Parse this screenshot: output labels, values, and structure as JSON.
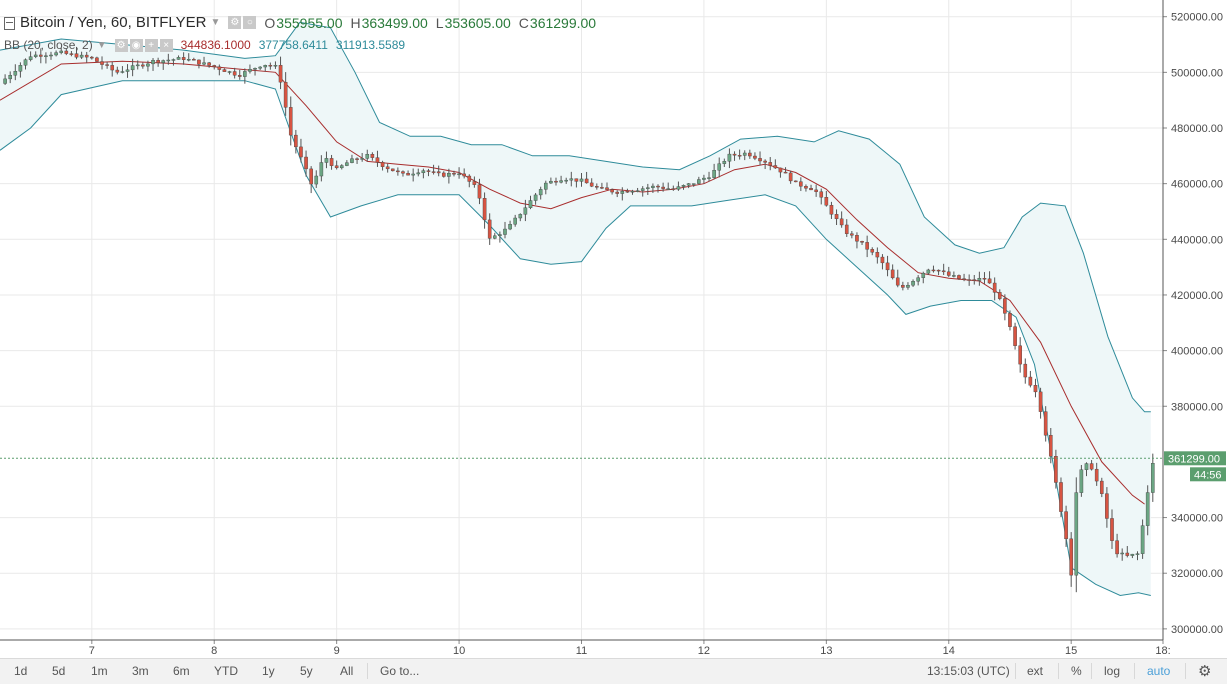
{
  "header": {
    "symbol": "Bitcoin / Yen, 60, BITFLYER",
    "ohlc": [
      {
        "label": "O",
        "value": "355955.00"
      },
      {
        "label": "H",
        "value": "363499.00"
      },
      {
        "label": "L",
        "value": "353605.00"
      },
      {
        "label": "C",
        "value": "361299.00"
      }
    ],
    "indicator": {
      "name": "BB (20, close, 2)",
      "basis": "344836.1000",
      "upper": "377758.6411",
      "lower": "311913.5589"
    }
  },
  "price_axis": {
    "last_price_label": "361299.00",
    "countdown": "44:56"
  },
  "toolbar": {
    "ranges": [
      "1d",
      "5d",
      "1m",
      "3m",
      "6m",
      "YTD",
      "1y",
      "5y",
      "All"
    ],
    "goto": "Go to...",
    "time": "13:15:03 (UTC)",
    "ext": "ext",
    "percent": "%",
    "log": "log",
    "auto": "auto"
  },
  "colors": {
    "up": "#6ba583",
    "down": "#d75442",
    "basis": "#a82d2d",
    "band": "#2e8b9a",
    "band_fill": "#eef7f8",
    "grid": "#e9e9e9",
    "last_price": "#5b9e6e"
  },
  "chart_data": {
    "type": "candlestick",
    "title": "Bitcoin / Yen, 60, BITFLYER",
    "x_tick_labels": [
      "7",
      "8",
      "9",
      "10",
      "11",
      "12",
      "13",
      "14",
      "15",
      "18:"
    ],
    "y_tick_labels": [
      "520000.00",
      "500000.00",
      "480000.00",
      "460000.00",
      "440000.00",
      "420000.00",
      "400000.00",
      "380000.00",
      "340000.00",
      "320000.00",
      "300000.00"
    ],
    "ylim": [
      296000,
      526000
    ],
    "xlim": [
      6.25,
      15.75
    ],
    "grid": true,
    "last_price": 361299,
    "day_x": [
      7,
      8,
      9,
      10,
      11,
      12,
      13,
      14,
      15,
      15.75
    ],
    "close_path": [
      [
        6.25,
        496000
      ],
      [
        6.5,
        506000
      ],
      [
        6.75,
        507000
      ],
      [
        7.0,
        505000
      ],
      [
        7.2,
        500000
      ],
      [
        7.5,
        504000
      ],
      [
        7.75,
        505000
      ],
      [
        8.0,
        502000
      ],
      [
        8.2,
        499000
      ],
      [
        8.4,
        503000
      ],
      [
        8.5,
        502000
      ],
      [
        8.55,
        496000
      ],
      [
        8.62,
        478000
      ],
      [
        8.72,
        468000
      ],
      [
        8.8,
        459000
      ],
      [
        8.9,
        470000
      ],
      [
        9.0,
        465000
      ],
      [
        9.1,
        468000
      ],
      [
        9.25,
        470000
      ],
      [
        9.4,
        466000
      ],
      [
        9.55,
        463000
      ],
      [
        9.7,
        465000
      ],
      [
        9.85,
        463000
      ],
      [
        10.0,
        464000
      ],
      [
        10.15,
        458000
      ],
      [
        10.25,
        440000
      ],
      [
        10.4,
        444000
      ],
      [
        10.55,
        452000
      ],
      [
        10.7,
        460000
      ],
      [
        10.85,
        462000
      ],
      [
        11.0,
        461000
      ],
      [
        11.15,
        458000
      ],
      [
        11.3,
        457000
      ],
      [
        11.45,
        458000
      ],
      [
        11.6,
        459000
      ],
      [
        11.75,
        458000
      ],
      [
        11.9,
        460000
      ],
      [
        12.05,
        463000
      ],
      [
        12.2,
        470000
      ],
      [
        12.35,
        471000
      ],
      [
        12.5,
        468000
      ],
      [
        12.65,
        464000
      ],
      [
        12.75,
        460000
      ],
      [
        12.9,
        458000
      ],
      [
        13.0,
        452000
      ],
      [
        13.15,
        443000
      ],
      [
        13.3,
        438000
      ],
      [
        13.45,
        432000
      ],
      [
        13.6,
        422000
      ],
      [
        13.7,
        425000
      ],
      [
        13.85,
        430000
      ],
      [
        14.0,
        427000
      ],
      [
        14.15,
        425000
      ],
      [
        14.3,
        426000
      ],
      [
        14.4,
        420000
      ],
      [
        14.5,
        408000
      ],
      [
        14.6,
        392000
      ],
      [
        14.72,
        385000
      ],
      [
        14.85,
        358000
      ],
      [
        14.95,
        335000
      ],
      [
        15.0,
        320000
      ],
      [
        15.05,
        355000
      ],
      [
        15.15,
        360000
      ],
      [
        15.25,
        348000
      ],
      [
        15.35,
        328000
      ],
      [
        15.45,
        326000
      ],
      [
        15.55,
        327000
      ],
      [
        15.65,
        357000
      ],
      [
        15.68,
        361000
      ]
    ],
    "series": [
      {
        "name": "BB basis",
        "points": [
          [
            6.25,
            490000
          ],
          [
            6.75,
            503000
          ],
          [
            7.25,
            504000
          ],
          [
            7.75,
            503000
          ],
          [
            8.25,
            501000
          ],
          [
            8.5,
            500000
          ],
          [
            8.75,
            488000
          ],
          [
            9.0,
            475000
          ],
          [
            9.25,
            468000
          ],
          [
            9.5,
            467000
          ],
          [
            9.75,
            466000
          ],
          [
            10.0,
            464000
          ],
          [
            10.25,
            458000
          ],
          [
            10.5,
            453000
          ],
          [
            10.75,
            451000
          ],
          [
            11.0,
            455000
          ],
          [
            11.25,
            458000
          ],
          [
            11.5,
            457000
          ],
          [
            11.75,
            458000
          ],
          [
            12.0,
            460000
          ],
          [
            12.25,
            465000
          ],
          [
            12.5,
            467000
          ],
          [
            12.75,
            464000
          ],
          [
            13.0,
            458000
          ],
          [
            13.25,
            447000
          ],
          [
            13.5,
            437000
          ],
          [
            13.75,
            428000
          ],
          [
            14.0,
            426000
          ],
          [
            14.25,
            425000
          ],
          [
            14.5,
            418000
          ],
          [
            14.75,
            403000
          ],
          [
            15.0,
            380000
          ],
          [
            15.25,
            360000
          ],
          [
            15.5,
            348000
          ],
          [
            15.6,
            344836
          ]
        ]
      },
      {
        "name": "BB upper",
        "points": [
          [
            6.25,
            508000
          ],
          [
            6.75,
            512000
          ],
          [
            7.25,
            510000
          ],
          [
            7.75,
            508000
          ],
          [
            8.25,
            505000
          ],
          [
            8.5,
            506000
          ],
          [
            8.7,
            518000
          ],
          [
            8.95,
            516000
          ],
          [
            9.15,
            500000
          ],
          [
            9.35,
            482000
          ],
          [
            9.6,
            477000
          ],
          [
            9.85,
            477000
          ],
          [
            10.1,
            474000
          ],
          [
            10.35,
            474000
          ],
          [
            10.6,
            470000
          ],
          [
            10.9,
            470000
          ],
          [
            11.2,
            468000
          ],
          [
            11.5,
            466000
          ],
          [
            11.8,
            465000
          ],
          [
            12.05,
            470000
          ],
          [
            12.3,
            476000
          ],
          [
            12.6,
            477000
          ],
          [
            12.9,
            475000
          ],
          [
            13.1,
            479000
          ],
          [
            13.35,
            476000
          ],
          [
            13.6,
            467000
          ],
          [
            13.8,
            448000
          ],
          [
            14.05,
            438000
          ],
          [
            14.25,
            435000
          ],
          [
            14.45,
            437000
          ],
          [
            14.6,
            448000
          ],
          [
            14.75,
            453000
          ],
          [
            14.95,
            452000
          ],
          [
            15.1,
            435000
          ],
          [
            15.3,
            405000
          ],
          [
            15.5,
            383000
          ],
          [
            15.6,
            378000
          ],
          [
            15.65,
            378000
          ]
        ]
      },
      {
        "name": "BB lower",
        "points": [
          [
            6.25,
            472000
          ],
          [
            6.5,
            480000
          ],
          [
            6.75,
            492000
          ],
          [
            7.25,
            497000
          ],
          [
            7.75,
            497000
          ],
          [
            8.25,
            497000
          ],
          [
            8.5,
            494000
          ],
          [
            8.75,
            463000
          ],
          [
            8.95,
            448000
          ],
          [
            9.2,
            452000
          ],
          [
            9.5,
            456000
          ],
          [
            9.75,
            456000
          ],
          [
            10.0,
            456000
          ],
          [
            10.25,
            445000
          ],
          [
            10.5,
            433000
          ],
          [
            10.75,
            431000
          ],
          [
            11.0,
            432000
          ],
          [
            11.2,
            444000
          ],
          [
            11.4,
            452000
          ],
          [
            11.6,
            452000
          ],
          [
            11.9,
            452000
          ],
          [
            12.2,
            454000
          ],
          [
            12.5,
            456000
          ],
          [
            12.75,
            452000
          ],
          [
            13.0,
            440000
          ],
          [
            13.25,
            430000
          ],
          [
            13.5,
            420000
          ],
          [
            13.65,
            413000
          ],
          [
            13.85,
            416000
          ],
          [
            14.1,
            418000
          ],
          [
            14.35,
            418000
          ],
          [
            14.55,
            412000
          ],
          [
            14.7,
            395000
          ],
          [
            14.85,
            360000
          ],
          [
            15.0,
            322000
          ],
          [
            15.2,
            316000
          ],
          [
            15.4,
            312000
          ],
          [
            15.55,
            313000
          ],
          [
            15.65,
            312000
          ]
        ]
      }
    ]
  }
}
